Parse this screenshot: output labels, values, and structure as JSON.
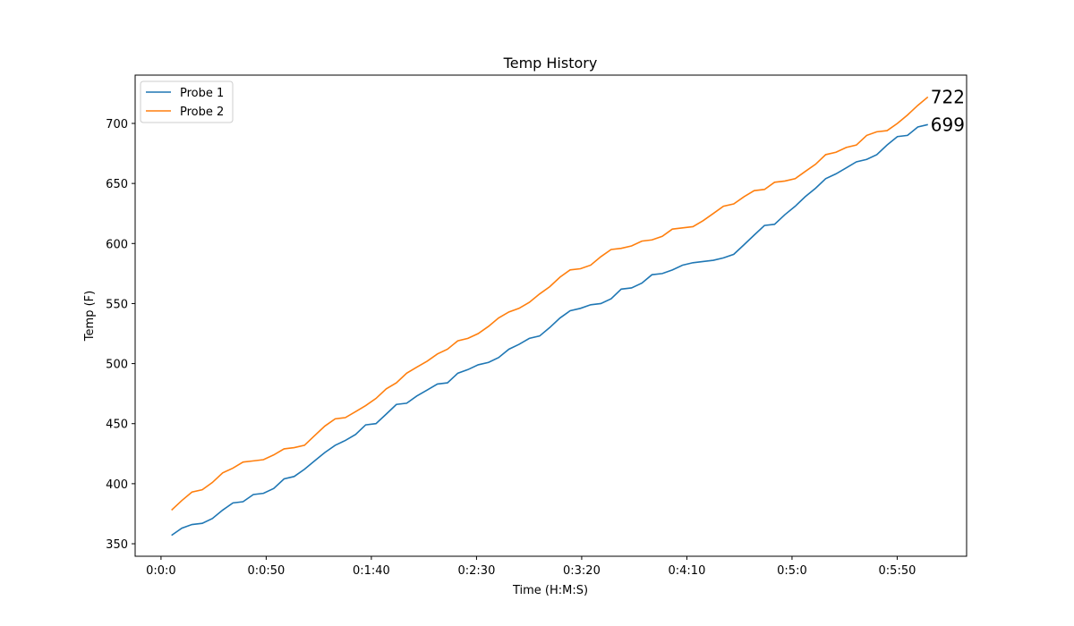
{
  "chart_data": {
    "type": "line",
    "title": "Temp History",
    "x_label": "Time (H:M:S)",
    "y_label": "Temp (F)",
    "x": [
      5,
      9.9,
      14.7,
      19.6,
      24.4,
      29.3,
      34.2,
      39,
      43.9,
      48.7,
      53.6,
      58.5,
      63.3,
      68.2,
      73,
      77.9,
      82.8,
      87.6,
      92.5,
      97.3,
      102.2,
      107.1,
      111.9,
      116.8,
      121.6,
      126.5,
      131.4,
      136.2,
      141.1,
      145.9,
      150.8,
      155.7,
      160.5,
      165.4,
      170.2,
      175.1,
      180,
      184.8,
      189.7,
      194.5,
      199.4,
      204.3,
      209.1,
      214,
      218.8,
      223.7,
      228.6,
      233.4,
      238.3,
      243.1,
      248,
      252.9,
      257.7,
      262.6,
      267.4,
      272.3,
      277.2,
      282,
      286.9,
      291.7,
      296.6,
      301.5,
      306.3,
      311.2,
      316,
      320.9,
      325.8,
      330.6,
      335.5,
      340.3,
      345.2,
      350.1,
      354.9,
      359.8,
      364.6
    ],
    "series": [
      {
        "name": "Probe 1",
        "color": "#1f77b4",
        "values": [
          357,
          363,
          366,
          367,
          371,
          378,
          384,
          385,
          391,
          392,
          396,
          404,
          406,
          412,
          419,
          426,
          432,
          436,
          441,
          449,
          450,
          458,
          466,
          467,
          473,
          478,
          483,
          484,
          492,
          495,
          499,
          501,
          505,
          512,
          516,
          521,
          523,
          530,
          538,
          544,
          546,
          549,
          550,
          554,
          562,
          563,
          567,
          574,
          575,
          578,
          582,
          584,
          585,
          586,
          588,
          591,
          599,
          607,
          615,
          616,
          624,
          631,
          639,
          646,
          654,
          658,
          663,
          668,
          670,
          674,
          682,
          689,
          690,
          697,
          699
        ]
      },
      {
        "name": "Probe 2",
        "color": "#ff7f0e",
        "values": [
          378,
          386,
          393,
          395,
          401,
          409,
          413,
          418,
          419,
          420,
          424,
          429,
          430,
          432,
          440,
          448,
          454,
          455,
          460,
          465,
          471,
          479,
          484,
          492,
          497,
          502,
          508,
          512,
          519,
          521,
          525,
          531,
          538,
          543,
          546,
          551,
          558,
          564,
          572,
          578,
          579,
          582,
          589,
          595,
          596,
          598,
          602,
          603,
          606,
          612,
          613,
          614,
          619,
          625,
          631,
          633,
          639,
          644,
          645,
          651,
          652,
          654,
          660,
          666,
          674,
          676,
          680,
          682,
          690,
          693,
          694,
          700,
          707,
          715,
          722
        ]
      }
    ],
    "xlim": [
      -12.3,
      383
    ],
    "ylim": [
      339.6,
      740.2
    ],
    "xticks": [
      {
        "value": 0,
        "label": "0:0:0"
      },
      {
        "value": 50,
        "label": "0:0:50"
      },
      {
        "value": 100,
        "label": "0:1:40"
      },
      {
        "value": 150,
        "label": "0:2:30"
      },
      {
        "value": 200,
        "label": "0:3:20"
      },
      {
        "value": 250,
        "label": "0:4:10"
      },
      {
        "value": 300,
        "label": "0:5:0"
      },
      {
        "value": 350,
        "label": "0:5:50"
      }
    ],
    "yticks": [
      350,
      400,
      450,
      500,
      550,
      600,
      650,
      700
    ],
    "legend": "upper left",
    "grid": false
  }
}
